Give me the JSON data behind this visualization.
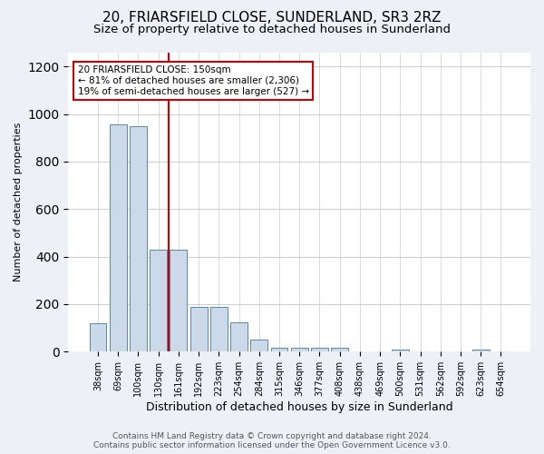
{
  "title1": "20, FRIARSFIELD CLOSE, SUNDERLAND, SR3 2RZ",
  "title2": "Size of property relative to detached houses in Sunderland",
  "xlabel": "Distribution of detached houses by size in Sunderland",
  "ylabel": "Number of detached properties",
  "categories": [
    "38sqm",
    "69sqm",
    "100sqm",
    "130sqm",
    "161sqm",
    "192sqm",
    "223sqm",
    "254sqm",
    "284sqm",
    "315sqm",
    "346sqm",
    "377sqm",
    "408sqm",
    "438sqm",
    "469sqm",
    "500sqm",
    "531sqm",
    "562sqm",
    "592sqm",
    "623sqm",
    "654sqm"
  ],
  "values": [
    120,
    955,
    948,
    430,
    430,
    190,
    190,
    125,
    50,
    15,
    15,
    15,
    15,
    0,
    0,
    10,
    0,
    0,
    0,
    10,
    0
  ],
  "bar_color": "#ccd9e8",
  "bar_edge_color": "#5588aa",
  "red_line_x": 3.5,
  "annotation_line1": "20 FRIARSFIELD CLOSE: 150sqm",
  "annotation_line2": "← 81% of detached houses are smaller (2,306)",
  "annotation_line3": "19% of semi-detached houses are larger (527) →",
  "annotation_box_color": "#ffffff",
  "annotation_box_edge": "#cc0000",
  "red_line_color": "#cc0000",
  "ylim": [
    0,
    1260
  ],
  "yticks": [
    0,
    200,
    400,
    600,
    800,
    1000,
    1200
  ],
  "bg_color": "#edf1f6",
  "plot_bg_color": "#ffffff",
  "title1_fontsize": 11,
  "title2_fontsize": 9.5,
  "xlabel_fontsize": 9,
  "ylabel_fontsize": 8,
  "tick_fontsize": 7,
  "footer1": "Contains HM Land Registry data © Crown copyright and database right 2024.",
  "footer2": "Contains public sector information licensed under the Open Government Licence v3.0.",
  "footer_fontsize": 6.5
}
